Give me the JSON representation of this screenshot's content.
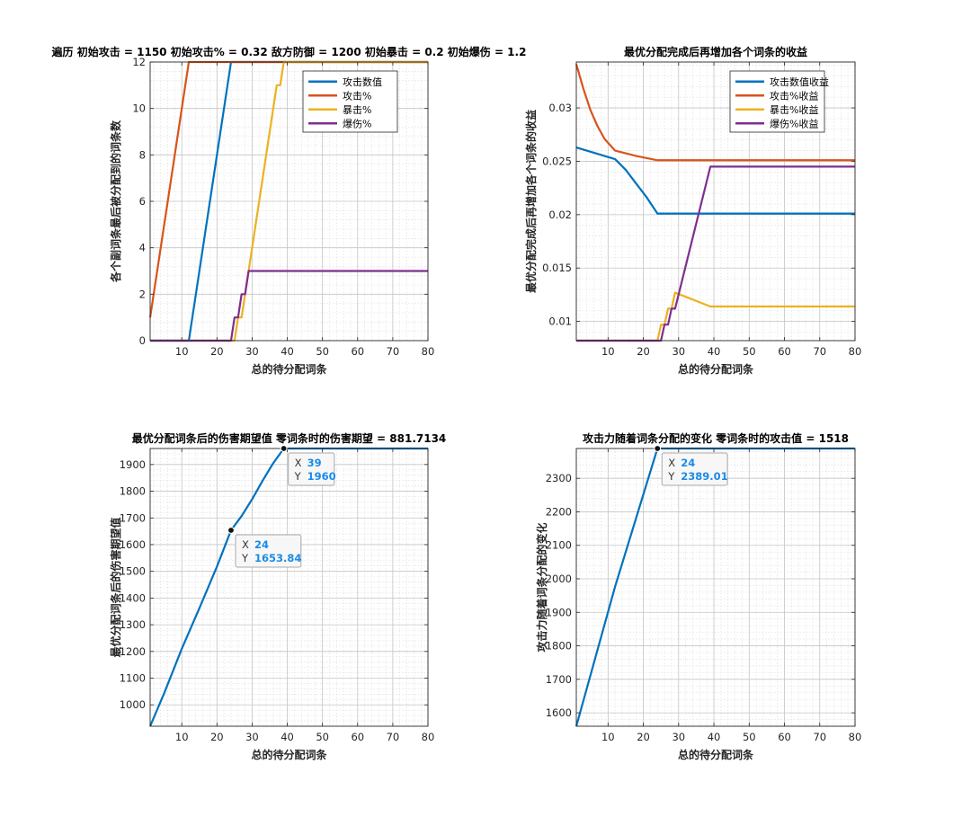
{
  "chart_data": [
    {
      "type": "line",
      "title": "遍历 初始攻击 = 1150 初始攻击% = 0.32 敌方防御 = 1200 初始暴击 = 0.2 初始爆伤 = 1.2",
      "xlabel": "总的待分配词条",
      "ylabel": "各个副词条最后被分配到的词条数",
      "xlim": [
        1,
        80
      ],
      "ylim": [
        0,
        12
      ],
      "xticks": [
        10,
        20,
        30,
        40,
        50,
        60,
        70,
        80
      ],
      "yticks": [
        0,
        2,
        4,
        6,
        8,
        10,
        12
      ],
      "grid": true,
      "minor_grid": true,
      "legend": "top-right",
      "series": [
        {
          "name": "攻击数值",
          "color": "#0072BD",
          "points": [
            [
              1,
              0
            ],
            [
              12,
              0
            ],
            [
              24,
              12
            ],
            [
              80,
              12
            ]
          ]
        },
        {
          "name": "攻击%",
          "color": "#D95319",
          "points": [
            [
              1,
              1
            ],
            [
              12,
              12
            ],
            [
              80,
              12
            ]
          ]
        },
        {
          "name": "暴击%",
          "color": "#EDB120",
          "points": [
            [
              1,
              0
            ],
            [
              24,
              0
            ],
            [
              25,
              0
            ],
            [
              26,
              1
            ],
            [
              27,
              1
            ],
            [
              28,
              2
            ],
            [
              29,
              3
            ],
            [
              30,
              4
            ],
            [
              31,
              5
            ],
            [
              32,
              6
            ],
            [
              33,
              7
            ],
            [
              34,
              8
            ],
            [
              35,
              9
            ],
            [
              36,
              10
            ],
            [
              37,
              11
            ],
            [
              38,
              11
            ],
            [
              39,
              12
            ],
            [
              80,
              12
            ]
          ]
        },
        {
          "name": "爆伤%",
          "color": "#7E2F8E",
          "points": [
            [
              1,
              0
            ],
            [
              24,
              0
            ],
            [
              25,
              1
            ],
            [
              26,
              1
            ],
            [
              27,
              2
            ],
            [
              28,
              2
            ],
            [
              29,
              3
            ],
            [
              80,
              3
            ]
          ]
        }
      ]
    },
    {
      "type": "line",
      "title": "最优分配完成后再增加各个词条的收益",
      "xlabel": "总的待分配词条",
      "ylabel": "最优分配完成后再增加各个词条的收益",
      "xlim": [
        1,
        80
      ],
      "ylim": [
        0.0082,
        0.0343
      ],
      "xticks": [
        10,
        20,
        30,
        40,
        50,
        60,
        70,
        80
      ],
      "yticks": [
        0.01,
        0.015,
        0.02,
        0.025,
        0.03
      ],
      "ytick_labels": [
        "0.01",
        "0.015",
        "0.02",
        "0.025",
        "0.03"
      ],
      "grid": true,
      "minor_grid": true,
      "legend": "top-right",
      "series": [
        {
          "name": "攻击数值收益",
          "color": "#0072BD",
          "points": [
            [
              1,
              0.0263
            ],
            [
              12,
              0.0252
            ],
            [
              15,
              0.0242
            ],
            [
              18,
              0.0229
            ],
            [
              21,
              0.0216
            ],
            [
              24,
              0.0201
            ],
            [
              80,
              0.0201
            ]
          ]
        },
        {
          "name": "攻击%收益",
          "color": "#D95319",
          "points": [
            [
              1,
              0.0341
            ],
            [
              3,
              0.0318
            ],
            [
              5,
              0.0298
            ],
            [
              7,
              0.0283
            ],
            [
              9,
              0.0271
            ],
            [
              12,
              0.026
            ],
            [
              18,
              0.0255
            ],
            [
              24,
              0.0251
            ],
            [
              80,
              0.0251
            ]
          ]
        },
        {
          "name": "暴击%收益",
          "color": "#EDB120",
          "points": [
            [
              1,
              0.0082
            ],
            [
              24,
              0.0082
            ],
            [
              25,
              0.0097
            ],
            [
              26,
              0.0097
            ],
            [
              27,
              0.0112
            ],
            [
              28,
              0.0112
            ],
            [
              29,
              0.0127
            ],
            [
              39,
              0.0114
            ],
            [
              80,
              0.0114
            ]
          ]
        },
        {
          "name": "爆伤%收益",
          "color": "#7E2F8E",
          "points": [
            [
              1,
              0.0082
            ],
            [
              25,
              0.0082
            ],
            [
              26,
              0.0097
            ],
            [
              27,
              0.0097
            ],
            [
              28,
              0.0112
            ],
            [
              29,
              0.0112
            ],
            [
              39,
              0.0245
            ],
            [
              80,
              0.0245
            ]
          ]
        }
      ]
    },
    {
      "type": "line",
      "title": "最优分配词条后的伤害期望值 零词条时的伤害期望 = 881.7134",
      "xlabel": "总的待分配词条",
      "ylabel": "最优分配词条后的伤害期望值",
      "xlim": [
        1,
        80
      ],
      "ylim": [
        920,
        1960
      ],
      "xticks": [
        10,
        20,
        30,
        40,
        50,
        60,
        70,
        80
      ],
      "yticks": [
        1000,
        1100,
        1200,
        1300,
        1400,
        1500,
        1600,
        1700,
        1800,
        1900
      ],
      "grid": true,
      "minor_grid": true,
      "series": [
        {
          "name": "",
          "color": "#0072BD",
          "points": [
            [
              1,
              920
            ],
            [
              5,
              1044
            ],
            [
              10,
              1210
            ],
            [
              15,
              1362
            ],
            [
              20,
              1518
            ],
            [
              24,
              1653.84
            ],
            [
              27,
              1707
            ],
            [
              30,
              1770
            ],
            [
              33,
              1840
            ],
            [
              36,
              1905
            ],
            [
              39,
              1960
            ],
            [
              80,
              1960
            ]
          ]
        }
      ],
      "datatips": [
        {
          "x_label": "X",
          "x_value": "24",
          "y_label": "Y",
          "y_value": "1653.84",
          "x": 24,
          "y": 1653.84
        },
        {
          "x_label": "X",
          "x_value": "39",
          "y_label": "Y",
          "y_value": "1960",
          "x": 39,
          "y": 1960
        }
      ]
    },
    {
      "type": "line",
      "title": "攻击力随着词条分配的变化 零词条时的攻击值 = 1518",
      "xlabel": "总的待分配词条",
      "ylabel": "攻击力随着词条分配的变化",
      "xlim": [
        1,
        80
      ],
      "ylim": [
        1560,
        2389.01
      ],
      "xticks": [
        10,
        20,
        30,
        40,
        50,
        60,
        70,
        80
      ],
      "yticks": [
        1600,
        1700,
        1800,
        1900,
        2000,
        2100,
        2200,
        2300
      ],
      "grid": true,
      "minor_grid": true,
      "series": [
        {
          "name": "",
          "color": "#0072BD",
          "points": [
            [
              1,
              1560
            ],
            [
              12,
              1977
            ],
            [
              24,
              2389.01
            ],
            [
              80,
              2389.01
            ]
          ]
        }
      ],
      "datatips": [
        {
          "x_label": "X",
          "x_value": "24",
          "y_label": "Y",
          "y_value": "2389.01",
          "x": 24,
          "y": 2389.01
        }
      ]
    }
  ]
}
